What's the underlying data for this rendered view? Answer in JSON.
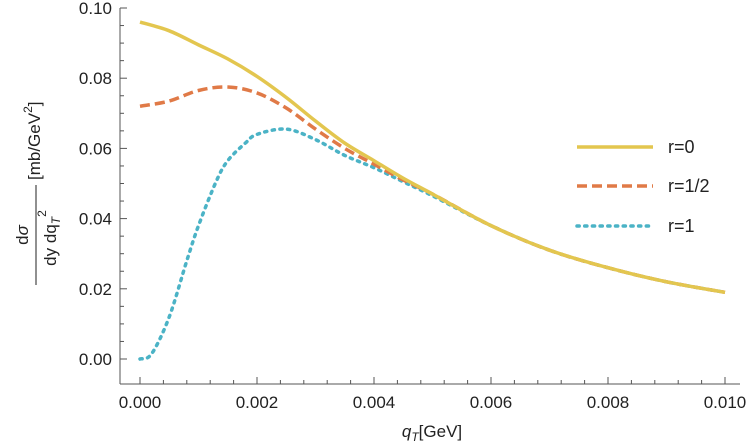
{
  "colors": {
    "r0": "#e3c64f",
    "r_half": "#e07a47",
    "r1": "#4bb3c6",
    "axis": "#555555",
    "text": "#222222"
  },
  "chart_data": {
    "type": "line",
    "title": "",
    "xlabel_main": "q",
    "xlabel_sub": "T",
    "xlabel_unit": "[GeV]",
    "ylabel": {
      "num_d": "d",
      "num_sigma": "σ",
      "den_text": "dy dq",
      "den_sub": "T",
      "den_sup": "2",
      "unit_prefix": "[mb/GeV",
      "unit_sup": "2",
      "unit_suffix": "]"
    },
    "xlim": [
      0,
      0.01
    ],
    "ylim": [
      0,
      0.1
    ],
    "xticks": [
      "0.000",
      "0.002",
      "0.004",
      "0.006",
      "0.008",
      "0.010"
    ],
    "xtick_values": [
      0,
      0.002,
      0.004,
      0.006,
      0.008,
      0.01
    ],
    "yticks": [
      "0.00",
      "0.02",
      "0.04",
      "0.06",
      "0.08",
      "0.10"
    ],
    "ytick_values": [
      0,
      0.02,
      0.04,
      0.06,
      0.08,
      0.1
    ],
    "legend_position": "right",
    "series": [
      {
        "name": "r=0",
        "style": "solid",
        "x": [
          0,
          0.0005,
          0.001,
          0.0015,
          0.002,
          0.0025,
          0.003,
          0.0035,
          0.004,
          0.0045,
          0.005,
          0.006,
          0.007,
          0.008,
          0.009,
          0.01
        ],
        "y": [
          0.096,
          0.0935,
          0.0895,
          0.0855,
          0.0805,
          0.0745,
          0.0678,
          0.0615,
          0.0565,
          0.0515,
          0.047,
          0.038,
          0.031,
          0.026,
          0.022,
          0.019
        ]
      },
      {
        "name": "r=1/2",
        "style": "dashed",
        "x": [
          0,
          0.0005,
          0.001,
          0.0015,
          0.002,
          0.0025,
          0.003,
          0.0035,
          0.004,
          0.0045,
          0.005,
          0.006,
          0.007,
          0.008,
          0.009,
          0.01
        ],
        "y": [
          0.072,
          0.0735,
          0.0765,
          0.0775,
          0.0758,
          0.0715,
          0.0655,
          0.06,
          0.0555,
          0.051,
          0.047,
          0.038,
          0.031,
          0.026,
          0.022,
          0.019
        ]
      },
      {
        "name": "r=1",
        "style": "dotted",
        "x": [
          0,
          0.0002,
          0.0005,
          0.0008,
          0.001,
          0.0013,
          0.0015,
          0.0018,
          0.002,
          0.0025,
          0.003,
          0.0035,
          0.004,
          0.0045,
          0.005,
          0.006,
          0.007,
          0.008,
          0.009,
          0.01
        ],
        "y": [
          0,
          0.0015,
          0.012,
          0.028,
          0.038,
          0.0505,
          0.0565,
          0.0615,
          0.064,
          0.0655,
          0.0625,
          0.058,
          0.0545,
          0.0505,
          0.0465,
          0.038,
          0.031,
          0.026,
          0.022,
          0.019
        ]
      }
    ]
  }
}
